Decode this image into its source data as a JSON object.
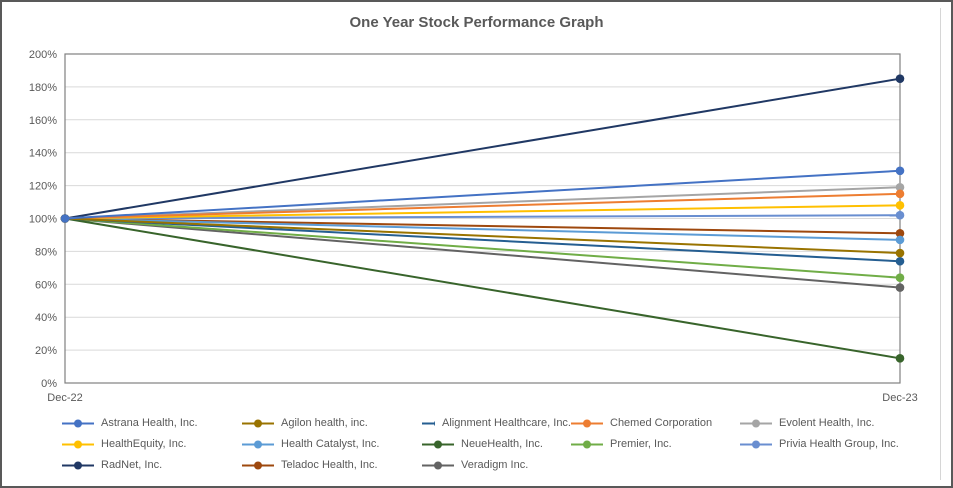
{
  "window": {
    "background": "#ffffff",
    "outer_border_color": "#595959",
    "inner_frame_color": "#d6d6d6"
  },
  "axis_style": {
    "text_color": "#595959",
    "grid_color": "#d9d9d9",
    "plot_border_color": "#808080"
  },
  "chart_data": {
    "type": "line",
    "title": "One Year Stock Performance Graph",
    "x_categories": [
      "Dec-22",
      "Dec-23"
    ],
    "ylim": [
      0,
      200
    ],
    "ytick_step": 20,
    "ytick_labels": [
      "0%",
      "20%",
      "40%",
      "60%",
      "80%",
      "100%",
      "120%",
      "140%",
      "160%",
      "180%",
      "200%"
    ],
    "grid": true,
    "legend_position": "bottom",
    "legend_columns": 5,
    "series": [
      {
        "name": "Astrana Health, Inc.",
        "color": "#4472C4",
        "values": [
          100,
          129
        ]
      },
      {
        "name": "Agilon health, inc.",
        "color": "#997300",
        "values": [
          100,
          79
        ]
      },
      {
        "name": "Alignment Healthcare, Inc.",
        "color": "#255E91",
        "values": [
          100,
          74
        ]
      },
      {
        "name": "Chemed Corporation",
        "color": "#ED7D31",
        "values": [
          100,
          115
        ]
      },
      {
        "name": "Evolent Health, Inc.",
        "color": "#A5A5A5",
        "values": [
          100,
          119
        ]
      },
      {
        "name": "HealthEquity, Inc.",
        "color": "#FFC000",
        "values": [
          100,
          108
        ]
      },
      {
        "name": "Health Catalyst, Inc.",
        "color": "#5B9BD5",
        "values": [
          100,
          87
        ]
      },
      {
        "name": "NeueHealth, Inc.",
        "color": "#38642B",
        "values": [
          100,
          15
        ]
      },
      {
        "name": "Premier, Inc.",
        "color": "#70AD47",
        "values": [
          100,
          64
        ]
      },
      {
        "name": "Privia Health Group, Inc.",
        "color": "#698ED0",
        "values": [
          100,
          102
        ]
      },
      {
        "name": "RadNet, Inc.",
        "color": "#203864",
        "values": [
          100,
          185
        ]
      },
      {
        "name": "Teladoc Health, Inc.",
        "color": "#9E480E",
        "values": [
          100,
          91
        ]
      },
      {
        "name": "Veradigm Inc.",
        "color": "#636363",
        "values": [
          100,
          58
        ]
      }
    ]
  }
}
